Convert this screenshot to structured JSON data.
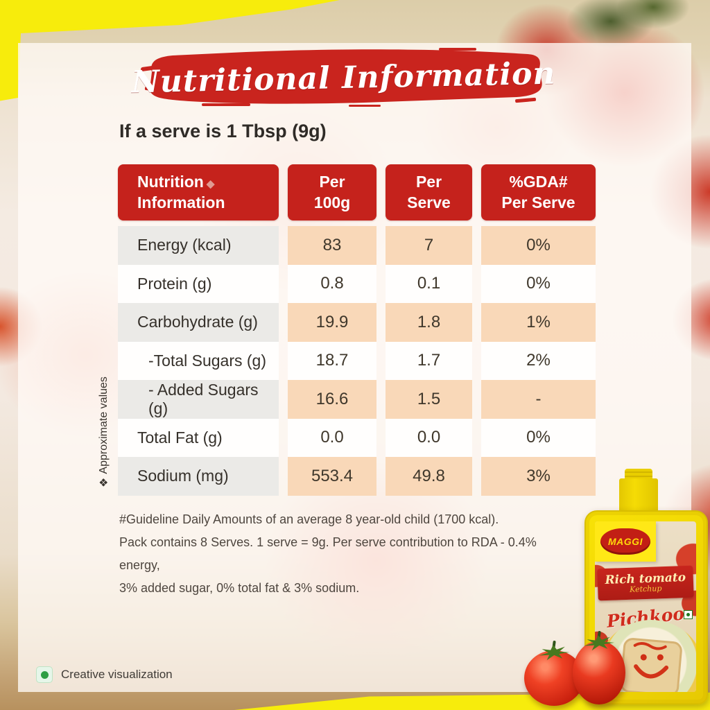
{
  "page": {
    "title_banner": "Nutritional Information",
    "subtitle": "If a serve is 1 Tbsp (9g)"
  },
  "table": {
    "columns": [
      {
        "line1": "Nutrition",
        "marker": "◆",
        "line2": "Information"
      },
      {
        "line1": "Per",
        "line2": "100g"
      },
      {
        "line1": "Per",
        "line2": "Serve"
      },
      {
        "line1": "%GDA#",
        "line2": "Per Serve"
      }
    ],
    "rows": [
      {
        "label": "Energy (kcal)",
        "values": [
          "83",
          "7",
          "0%"
        ]
      },
      {
        "label": "Protein (g)",
        "values": [
          "0.8",
          "0.1",
          "0%"
        ]
      },
      {
        "label": "Carbohydrate (g)",
        "values": [
          "19.9",
          "1.8",
          "1%"
        ]
      },
      {
        "label": "-Total Sugars (g)",
        "indent": true,
        "values": [
          "18.7",
          "1.7",
          "2%"
        ]
      },
      {
        "label": "- Added Sugars (g)",
        "indent": true,
        "values": [
          "16.6",
          "1.5",
          "-"
        ]
      },
      {
        "label": "Total Fat (g)",
        "values": [
          "0.0",
          "0.0",
          "0%"
        ]
      },
      {
        "label": "Sodium (mg)",
        "values": [
          "553.4",
          "49.8",
          "3%"
        ]
      }
    ]
  },
  "side_note": {
    "marker": "❖",
    "text": "Approximate values"
  },
  "footnotes": [
    "#Guideline Daily Amounts of an average 8 year-old child (1700 kcal).",
    "Pack contains 8 Serves. 1 serve = 9g. Per serve contribution to RDA - 0.4% energy,",
    "3% added sugar, 0% total fat & 3% sodium."
  ],
  "footer": {
    "creative_note": "Creative visualization"
  },
  "product": {
    "brand": "MAGGI",
    "variant_line1": "Rich tomato",
    "variant_line2": "Ketchup",
    "name": "Pichkoo"
  },
  "colors": {
    "header_red": "#c5221c",
    "banner_red": "#c9241e",
    "frame_yellow": "#f7ec0c",
    "peach_cell": "#f9d8b8",
    "gray_cell": "#ebeae7",
    "veg_green": "#2e9e44"
  }
}
